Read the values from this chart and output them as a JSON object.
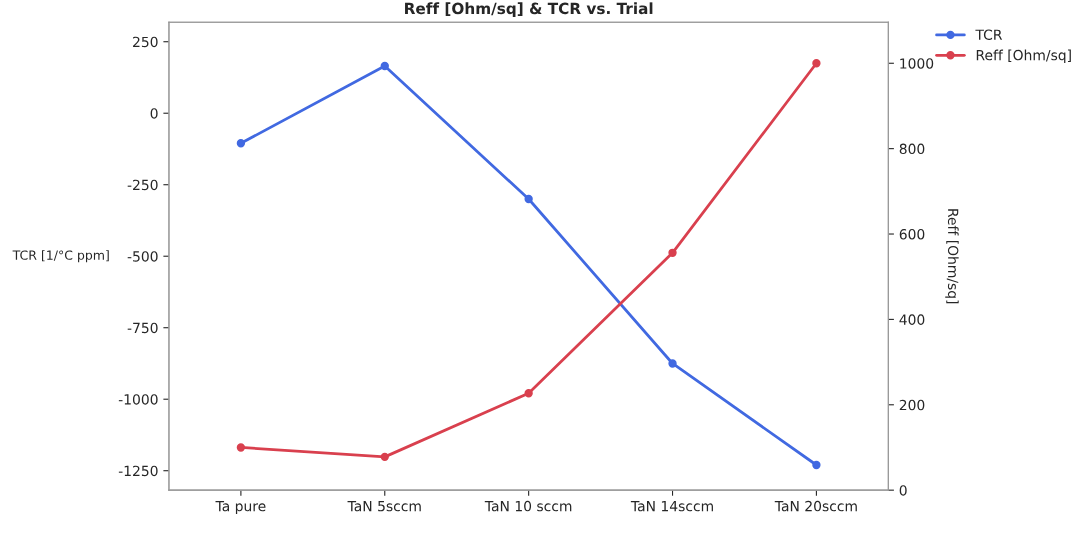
{
  "chart_data": {
    "type": "line",
    "title": "Reff [Ohm/sq] & TCR vs. Trial",
    "ylabel": "TCR [1/°C ppm]",
    "y2label": "Reff [Ohm/sq]",
    "categories": [
      "Ta pure",
      "TaN 5sccm",
      "TaN 10 sccm",
      "TaN 14sccm",
      "TaN 20sccm"
    ],
    "series": [
      {
        "name": "TCR",
        "color": "#4169e1",
        "values": [
          -105,
          165,
          -300,
          -875,
          -1230
        ]
      },
      {
        "name": "Reff [Ohm/sq]",
        "color": "#d9404e",
        "axis": "y2",
        "values": [
          100,
          78,
          227,
          556,
          1000
        ]
      }
    ],
    "ylim": [
      -1318,
      318
    ],
    "yticks": [
      -1250,
      -1000,
      -750,
      -500,
      -250,
      0,
      250
    ],
    "y2lim": [
      0,
      1096
    ],
    "y2ticks": [
      0,
      200,
      400,
      600,
      800,
      1000
    ],
    "grid": false,
    "legend": "top right",
    "marker": "circle",
    "line_style": "solid"
  }
}
